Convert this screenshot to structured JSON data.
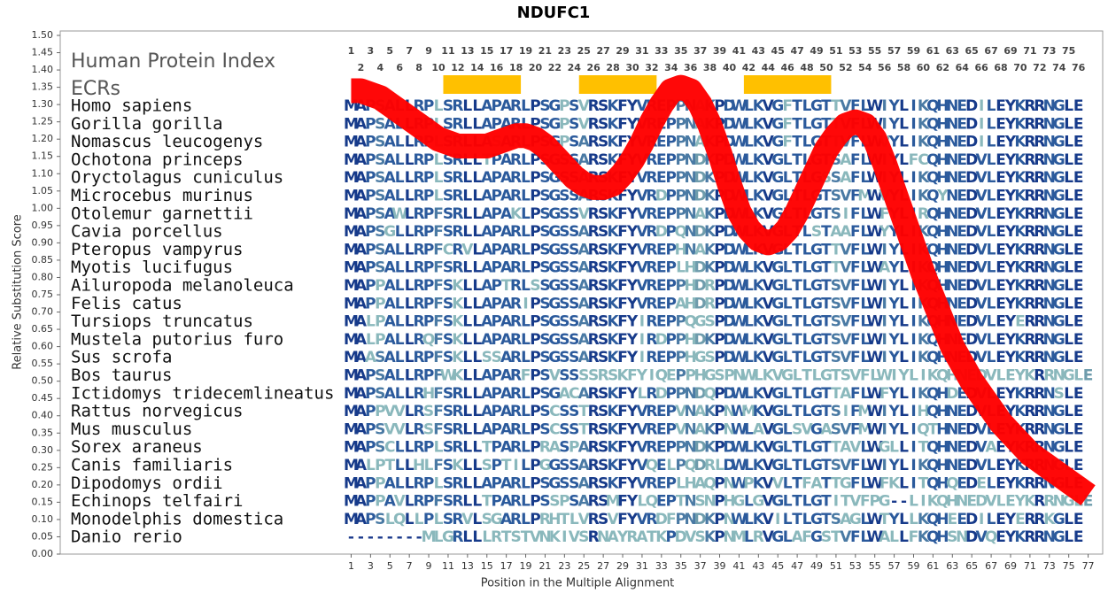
{
  "chart_data": {
    "type": "alignment",
    "title": "NDUFC1",
    "x_label": "Position in the Multiple Alignment",
    "y_label": "Relative Substitution Score",
    "index_label": "Human Protein Index",
    "ecr_label": "ECRs",
    "ecr_color": "#ffc000",
    "ecr_ranges": [
      [
        11,
        18
      ],
      [
        25,
        32
      ],
      [
        42,
        50
      ]
    ],
    "human_index": [
      1,
      2,
      3,
      4,
      5,
      6,
      7,
      8,
      9,
      10,
      11,
      12,
      13,
      14,
      15,
      16,
      17,
      18,
      19,
      20,
      21,
      22,
      23,
      24,
      25,
      26,
      27,
      28,
      29,
      30,
      31,
      32,
      33,
      34,
      35,
      36,
      37,
      38,
      39,
      40,
      41,
      42,
      43,
      44,
      45,
      46,
      47,
      48,
      49,
      50,
      51,
      52,
      53,
      54,
      55,
      56,
      57,
      58,
      59,
      60,
      61,
      62,
      63,
      64,
      65,
      66,
      67,
      68,
      69,
      70,
      71,
      72,
      73,
      74,
      75,
      76
    ],
    "xlim": [
      -29,
      78.5
    ],
    "xticks": [
      1,
      3,
      5,
      7,
      9,
      11,
      13,
      15,
      17,
      19,
      21,
      23,
      25,
      27,
      29,
      31,
      33,
      35,
      37,
      39,
      41,
      43,
      45,
      47,
      49,
      51,
      53,
      55,
      57,
      59,
      61,
      63,
      65,
      67,
      69,
      71,
      73,
      75,
      77
    ],
    "ylim": [
      0,
      1.5
    ],
    "yticks": [
      {
        "value": 0,
        "label": "0.00"
      },
      {
        "value": 0.05,
        "label": "0.05"
      },
      {
        "value": 0.1,
        "label": "0.10"
      },
      {
        "value": 0.15,
        "label": "0.15"
      },
      {
        "value": 0.2,
        "label": "0.20"
      },
      {
        "value": 0.25,
        "label": "0.25"
      },
      {
        "value": 0.3,
        "label": "0.30"
      },
      {
        "value": 0.35,
        "label": "0.35"
      },
      {
        "value": 0.4,
        "label": "0.40"
      },
      {
        "value": 0.45,
        "label": "0.45"
      },
      {
        "value": 0.5,
        "label": "0.50"
      },
      {
        "value": 0.55,
        "label": "0.55"
      },
      {
        "value": 0.6,
        "label": "0.60"
      },
      {
        "value": 0.65,
        "label": "0.65"
      },
      {
        "value": 0.7,
        "label": "0.70"
      },
      {
        "value": 0.75,
        "label": "0.75"
      },
      {
        "value": 0.8,
        "label": "0.80"
      },
      {
        "value": 0.85,
        "label": "0.85"
      },
      {
        "value": 0.9,
        "label": "0.90"
      },
      {
        "value": 0.95,
        "label": "0.95"
      },
      {
        "value": 1,
        "label": "1.00"
      },
      {
        "value": 1.05,
        "label": "1.05"
      },
      {
        "value": 1.1,
        "label": "1.10"
      },
      {
        "value": 1.15,
        "label": "1.15"
      },
      {
        "value": 1.2,
        "label": "1.20"
      },
      {
        "value": 1.25,
        "label": "1.25"
      },
      {
        "value": 1.3,
        "label": "1.30"
      },
      {
        "value": 1.35,
        "label": "1.35"
      },
      {
        "value": 1.4,
        "label": "1.40"
      },
      {
        "value": 1.45,
        "label": "1.45"
      },
      {
        "value": 1.5,
        "label": "1.50"
      }
    ],
    "score": {
      "color": "#ff0000",
      "x": [
        1,
        2,
        3,
        4,
        5,
        6,
        7,
        8,
        9,
        10,
        11,
        12,
        13,
        14,
        15,
        16,
        17,
        18,
        19,
        20,
        21,
        22,
        23,
        24,
        25,
        26,
        27,
        28,
        29,
        30,
        31,
        32,
        33,
        34,
        35,
        36,
        37,
        38,
        39,
        40,
        41,
        42,
        43,
        44,
        45,
        46,
        47,
        48,
        49,
        50,
        51,
        52,
        53,
        54,
        55,
        56,
        57,
        58,
        59,
        60,
        61,
        62,
        63,
        64,
        65,
        66,
        67,
        68,
        69,
        70,
        71,
        72,
        73,
        74,
        75,
        76,
        77
      ],
      "values": [
        1.34,
        1.34,
        1.33,
        1.32,
        1.3,
        1.28,
        1.26,
        1.24,
        1.22,
        1.2,
        1.19,
        1.18,
        1.18,
        1.18,
        1.18,
        1.19,
        1.2,
        1.21,
        1.21,
        1.2,
        1.18,
        1.15,
        1.12,
        1.09,
        1.07,
        1.06,
        1.06,
        1.07,
        1.1,
        1.14,
        1.19,
        1.25,
        1.3,
        1.34,
        1.35,
        1.34,
        1.3,
        1.24,
        1.16,
        1.07,
        0.99,
        0.94,
        0.91,
        0.9,
        0.91,
        0.94,
        0.99,
        1.05,
        1.11,
        1.17,
        1.21,
        1.24,
        1.25,
        1.24,
        1.2,
        1.13,
        1.05,
        0.97,
        0.89,
        0.81,
        0.74,
        0.67,
        0.6,
        0.55,
        0.5,
        0.46,
        0.42,
        0.38,
        0.35,
        0.32,
        0.29,
        0.27,
        0.25,
        0.23,
        0.21,
        0.19,
        0.17
      ]
    },
    "species": [
      "Homo sapiens",
      "Gorilla gorilla",
      "Nomascus leucogenys",
      "Ochotona princeps",
      "Oryctolagus cuniculus",
      "Microcebus murinus",
      "Otolemur garnettii",
      "Cavia porcellus",
      "Pteropus vampyrus",
      "Myotis lucifugus",
      "Ailuropoda melanoleuca",
      "Felis catus",
      "Tursiops truncatus",
      "Mustela putorius furo",
      "Sus scrofa",
      "Bos taurus",
      "Ictidomys tridecemlineatus",
      "Rattus norvegicus",
      "Mus musculus",
      "Sorex araneus",
      "Canis familiaris",
      "Dipodomys ordii",
      "Echinops telfairi",
      "Monodelphis domestica",
      "Danio rerio"
    ],
    "sequences": [
      "MAPSALLRPLSRLLAPARLPSGPSVRSKFYVREPPNAKPDWLKVGFTLGTTVFLWIYLIKQHNEDILEYKRRNGLE",
      "MAPSALLRPLSRLLAPARLPSGPSVRSKFYVREPPNAKPDWLKVGFTLGTTVFLWIYLIKQHNEDILEYKRRNGLE",
      "MAPSALLRPLSRLLASARLPSGPSARSKFYVREPPNAKPDWLKVGFTLGTTVFLWVYLIKQHNEDILEYKRRNGLE",
      "MAPSALLRPLSRLLTPARLPSGSSARSKFYVREPPNDKPDWLKVGLTLGTSAFLWIYLFCQHNEDVLEYKRRNGLE",
      "MAPSALLRPLSRLLAPARLPSGSSARSKFYVREPPNDKPDWLKVGLTLGSSAFLWIYLIKQHNEDVLEYKRRNGLE",
      "MAPSALLRPLSRLLAPARLPSGSSARSKFYVRDPPNDKPDWLKVGLTLGTSVFMWVYLIKQYNEDVLEYKRRNGLE",
      "MAPSAWLRPFSRLLAPAKLPSGSSVRSKFYVREPPNAKPDWLKVGLTLGTSIFLWFYLIRQHNEDVLEYKRRNGLE",
      "MAPSGLLRPFSRLLAPARLPSGSSARSKFYVRDPQNDKPDWLKVGLTLSTAAFLWYYLIKQHNEDVLEYKRRNGLE",
      "MAPSALLRPFCRVLAPARLPSGSSARSKFYVREPHNAKPDWLKVGLTLGTTVFLWIYLIKQHNEDVLEYKRRNGLE",
      "MAPSALLRPFSRLLAPARLPSGSSARSKFYVREPLHDKPDWLKVGLTLGTTVFLWAYLIKQHNEDVLEYKRRNGLE",
      "MAPPALLRPFSKLLAPTRLSSGSSARSKFYVREPPHDRPDWLKVGLTLGTSVFLWIYLIKQHNEDVLEYKRRNGLE",
      "MAPPALLRPFSKLLAPARIPSGSSARSKFYVREPAHDRPDWLKVGLTLGTSVFLWIYLIKQHNEDVLEYKRRNGLE",
      "MALPALLRPFSKLLAPARLPSGSSARSKFYIREPPQGSPDWLKVGLTLGTSVFLWIYLIKQHNEDVLEYERRNGLE",
      "MALPALLRQFSKLLAPARLPSGSSARSKFYIRDPPHDKPDWLKVGLTLGTSVFLWIYLIKQHNEDVLEYKRRNGLE",
      "MAASALLRPFSKLLSSARLPSGSSARSKFYIREPPHGSPDWLKVGLTLGTSVFLWIYLIKQHNEDVLEYKRRNGLE",
      "MAPSALLRPFWKLLAPARFPSVSSSSRSKFYIQEPPHGSPNWLKVGLTLGTSVFLWIYLIKQHNEDVLEYKRRNGLE",
      "MAPSALLRHFSRLLAPARLPSGACARSKFYLRDPPNDQPDWLKVGLTLGTTAFLWFYLIKQHDEDVLEYKRRNSLE",
      "MAPPVVLRSFSRLLAPARLPSCSSTRSKFYVREPVNAKPNWMKVGLTLGTSIFMWIYLIHQHNEDVLEYKRRNGLE",
      "MAPSVVLRSFSRLLAPARLPSCSSTRSKFYVREPVNAKPNWLAVGLSVGASVFMWIYLIQTHNEDVLEYKRRNGLE",
      "MAPSCLLRPLSRLLTPARLPRASPARSKFYVREPPNDKPDWLKVGLTLGTTAVLWGLLITQHNEDVAEYKRRNGLE",
      "MALPTLLHLFSKLLSPTILPGGSSARSKFYVQELPQDRLDWLKVGLTLGTSVFLWIYLIKQHNEDVLEYKRRNGLE",
      "MAPPALLRPLSRLLAPARLPSGSSARSKFYVREPLHAQPNWPKVVLTFATTGFLWFKLITQHQEDELEYKRRNGLE",
      "MAPPAVLRPFSRLLTPARLPSSPSARSMFYLQEPTNSNPHGLGVGLTLGTITVFPG--LIKQHNEDVLEYKRRNGLE",
      "MAPSLQLLPLSRVLSGARLPRHTLVRSVFYVRDFPNDKPNWLKVILTLGTSAGLWTYLLKQHEEDILEYERRKGLE",
      "--------MLGRLLLRTSTVNKIVSRNAYRATKPDVSKPNMLRVGLAFGSTVFLWALLFKQHSNDVQEYKRRNGLE"
    ]
  }
}
